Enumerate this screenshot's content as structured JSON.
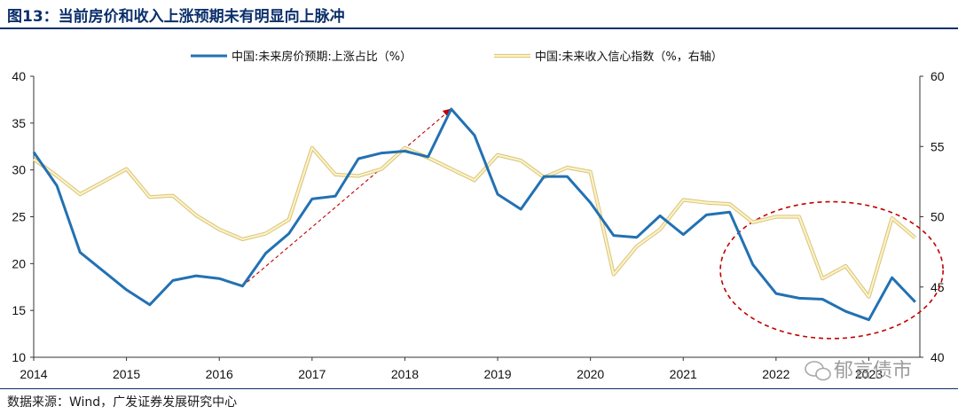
{
  "header": {
    "title": "图13：当前房价和收入上涨预期未有明显向上脉冲"
  },
  "footer": {
    "source": "数据来源：Wind，广发证券发展研究中心"
  },
  "watermark": {
    "text": "郁言债市",
    "icon": "wechat-icon"
  },
  "colors": {
    "series1": "#2271b3",
    "series2": "#f2df9b",
    "annotation": "#c00000",
    "text": "#111111",
    "title": "#0b2f6b"
  },
  "chart_data": {
    "type": "line",
    "title": "",
    "xlabel": "",
    "ylabel": "",
    "x_ticks": [
      "2014",
      "2015",
      "2016",
      "2017",
      "2018",
      "2019",
      "2020",
      "2021",
      "2022",
      "2023"
    ],
    "xlim": [
      2014.0,
      2023.55
    ],
    "y_left": {
      "lim": [
        10,
        40
      ],
      "ticks": [
        10,
        15,
        20,
        25,
        30,
        35,
        40
      ]
    },
    "y_right": {
      "lim": [
        40,
        60
      ],
      "ticks": [
        40,
        45,
        50,
        55,
        60
      ]
    },
    "legend_position": "top",
    "grid": false,
    "series": [
      {
        "name": "中国:未来房价预期:上涨占比（%）",
        "axis": "left",
        "points": [
          [
            2014.0,
            31.9
          ],
          [
            2014.25,
            28.3
          ],
          [
            2014.5,
            21.2
          ],
          [
            2014.75,
            19.2
          ],
          [
            2015.0,
            17.2
          ],
          [
            2015.25,
            15.6
          ],
          [
            2015.5,
            18.2
          ],
          [
            2015.75,
            18.7
          ],
          [
            2016.0,
            18.4
          ],
          [
            2016.25,
            17.6
          ],
          [
            2016.5,
            21.1
          ],
          [
            2016.75,
            23.2
          ],
          [
            2017.0,
            26.9
          ],
          [
            2017.25,
            27.2
          ],
          [
            2017.5,
            31.2
          ],
          [
            2017.75,
            31.8
          ],
          [
            2018.0,
            32.0
          ],
          [
            2018.25,
            31.4
          ],
          [
            2018.5,
            36.5
          ],
          [
            2018.75,
            33.7
          ],
          [
            2019.0,
            27.4
          ],
          [
            2019.25,
            25.8
          ],
          [
            2019.5,
            29.3
          ],
          [
            2019.75,
            29.3
          ],
          [
            2020.0,
            26.5
          ],
          [
            2020.25,
            23.0
          ],
          [
            2020.5,
            22.8
          ],
          [
            2020.75,
            25.1
          ],
          [
            2021.0,
            23.1
          ],
          [
            2021.25,
            25.2
          ],
          [
            2021.5,
            25.5
          ],
          [
            2021.75,
            19.9
          ],
          [
            2022.0,
            16.8
          ],
          [
            2022.25,
            16.3
          ],
          [
            2022.5,
            16.2
          ],
          [
            2022.75,
            14.9
          ],
          [
            2023.0,
            14.0
          ],
          [
            2023.25,
            18.5
          ],
          [
            2023.5,
            15.9
          ]
        ]
      },
      {
        "name": "中国:未来收入信心指数（%，右轴）",
        "axis": "right",
        "points": [
          [
            2014.0,
            54.1
          ],
          [
            2014.25,
            52.9
          ],
          [
            2014.5,
            51.6
          ],
          [
            2014.75,
            52.5
          ],
          [
            2015.0,
            53.4
          ],
          [
            2015.25,
            51.4
          ],
          [
            2015.5,
            51.5
          ],
          [
            2015.75,
            50.1
          ],
          [
            2016.0,
            49.1
          ],
          [
            2016.25,
            48.4
          ],
          [
            2016.5,
            48.8
          ],
          [
            2016.75,
            49.8
          ],
          [
            2017.0,
            54.9
          ],
          [
            2017.25,
            53.0
          ],
          [
            2017.5,
            52.9
          ],
          [
            2017.75,
            53.4
          ],
          [
            2018.0,
            54.9
          ],
          [
            2018.25,
            54.2
          ],
          [
            2018.5,
            53.4
          ],
          [
            2018.75,
            52.6
          ],
          [
            2019.0,
            54.4
          ],
          [
            2019.25,
            54.0
          ],
          [
            2019.5,
            52.8
          ],
          [
            2019.75,
            53.5
          ],
          [
            2020.0,
            53.2
          ],
          [
            2020.25,
            45.9
          ],
          [
            2020.5,
            47.9
          ],
          [
            2020.75,
            49.1
          ],
          [
            2021.0,
            51.2
          ],
          [
            2021.25,
            51.0
          ],
          [
            2021.5,
            50.9
          ],
          [
            2021.75,
            49.6
          ],
          [
            2022.0,
            50.0
          ],
          [
            2022.25,
            50.0
          ],
          [
            2022.5,
            45.6
          ],
          [
            2022.75,
            46.5
          ],
          [
            2023.0,
            44.3
          ],
          [
            2023.25,
            49.9
          ],
          [
            2023.5,
            48.5
          ]
        ]
      }
    ],
    "annotations": [
      {
        "type": "dashed-arrow",
        "from": [
          2016.25,
          17.6
        ],
        "to": [
          2018.5,
          36.5
        ]
      },
      {
        "type": "dashed-ellipse",
        "center": [
          2022.6,
          19.3
        ],
        "rx_years": 1.2,
        "ry_units": 7.3
      }
    ]
  }
}
